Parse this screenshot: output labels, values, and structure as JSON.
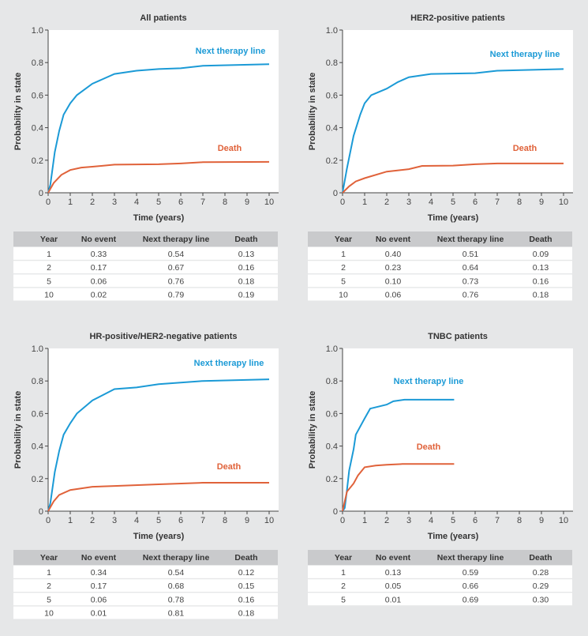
{
  "colors": {
    "next_therapy_line": "#1b9ad6",
    "death": "#e0623a",
    "background": "#e6e7e8",
    "table_header": "#c9cacc"
  },
  "chart_data": [
    {
      "type": "line",
      "title": "All patients",
      "xlabel": "Time (years)",
      "ylabel": "Probability in state",
      "xlim": [
        0,
        10
      ],
      "ylim": [
        0,
        1.0
      ],
      "xticks": [
        "0",
        "1",
        "2",
        "3",
        "4",
        "5",
        "6",
        "7",
        "8",
        "9",
        "10"
      ],
      "yticks": [
        "0",
        "0.2",
        "0.4",
        "0.6",
        "0.8",
        "1.0"
      ],
      "grid": false,
      "series": [
        {
          "name": "Next therapy line",
          "x": [
            0,
            0.1,
            0.3,
            0.5,
            0.7,
            1,
            1.3,
            2,
            3,
            4,
            5,
            6,
            7,
            10
          ],
          "y": [
            0,
            0.05,
            0.25,
            0.38,
            0.48,
            0.55,
            0.6,
            0.67,
            0.73,
            0.75,
            0.76,
            0.765,
            0.78,
            0.79
          ]
        },
        {
          "name": "Death",
          "x": [
            0,
            0.25,
            0.6,
            1,
            1.5,
            2,
            3,
            5,
            6,
            7,
            10
          ],
          "y": [
            0,
            0.06,
            0.11,
            0.14,
            0.155,
            0.16,
            0.173,
            0.175,
            0.18,
            0.188,
            0.19
          ]
        }
      ],
      "table": {
        "columns": [
          "Year",
          "No event",
          "Next therapy line",
          "Death"
        ],
        "rows": [
          [
            "1",
            "0.33",
            "0.54",
            "0.13"
          ],
          [
            "2",
            "0.17",
            "0.67",
            "0.16"
          ],
          [
            "5",
            "0.06",
            "0.76",
            "0.18"
          ],
          [
            "10",
            "0.02",
            "0.79",
            "0.19"
          ]
        ]
      }
    },
    {
      "type": "line",
      "title": "HER2-positive patients",
      "xlabel": "Time (years)",
      "ylabel": "Probability in state",
      "xlim": [
        0,
        10
      ],
      "ylim": [
        0,
        1.0
      ],
      "xticks": [
        "0",
        "1",
        "2",
        "3",
        "4",
        "5",
        "6",
        "7",
        "8",
        "9",
        "10"
      ],
      "yticks": [
        "0",
        "0.2",
        "0.4",
        "0.6",
        "0.8",
        "1.0"
      ],
      "grid": false,
      "series": [
        {
          "name": "Next therapy line",
          "x": [
            0,
            0.2,
            0.5,
            0.8,
            1,
            1.3,
            2,
            2.5,
            3,
            4,
            6,
            7,
            10
          ],
          "y": [
            0,
            0.15,
            0.35,
            0.48,
            0.55,
            0.6,
            0.64,
            0.68,
            0.71,
            0.73,
            0.735,
            0.75,
            0.76
          ]
        },
        {
          "name": "Death",
          "x": [
            0,
            0.3,
            0.6,
            1,
            2,
            3,
            3.6,
            5,
            6,
            7,
            10
          ],
          "y": [
            0,
            0.04,
            0.07,
            0.09,
            0.13,
            0.145,
            0.165,
            0.167,
            0.175,
            0.18,
            0.18
          ]
        }
      ],
      "table": {
        "columns": [
          "Year",
          "No event",
          "Next therapy line",
          "Death"
        ],
        "rows": [
          [
            "1",
            "0.40",
            "0.51",
            "0.09"
          ],
          [
            "2",
            "0.23",
            "0.64",
            "0.13"
          ],
          [
            "5",
            "0.10",
            "0.73",
            "0.16"
          ],
          [
            "10",
            "0.06",
            "0.76",
            "0.18"
          ]
        ]
      }
    },
    {
      "type": "line",
      "title": "HR-positive/HER2-negative patients",
      "xlabel": "Time (years)",
      "ylabel": "Probability in state",
      "xlim": [
        0,
        10
      ],
      "ylim": [
        0,
        1.0
      ],
      "xticks": [
        "0",
        "1",
        "2",
        "3",
        "4",
        "5",
        "6",
        "7",
        "8",
        "9",
        "10"
      ],
      "yticks": [
        "0",
        "0.2",
        "0.4",
        "0.6",
        "0.8",
        "1.0"
      ],
      "grid": false,
      "series": [
        {
          "name": "Next therapy line",
          "x": [
            0,
            0.1,
            0.3,
            0.5,
            0.7,
            1,
            1.3,
            2,
            3,
            4,
            5,
            7,
            10
          ],
          "y": [
            0,
            0.05,
            0.24,
            0.37,
            0.47,
            0.54,
            0.6,
            0.68,
            0.75,
            0.76,
            0.78,
            0.8,
            0.81
          ]
        },
        {
          "name": "Death",
          "x": [
            0,
            0.25,
            0.5,
            1,
            2,
            3,
            5,
            7,
            10
          ],
          "y": [
            0,
            0.06,
            0.1,
            0.13,
            0.15,
            0.155,
            0.165,
            0.175,
            0.175
          ]
        }
      ],
      "table": {
        "columns": [
          "Year",
          "No event",
          "Next therapy line",
          "Death"
        ],
        "rows": [
          [
            "1",
            "0.34",
            "0.54",
            "0.12"
          ],
          [
            "2",
            "0.17",
            "0.68",
            "0.15"
          ],
          [
            "5",
            "0.06",
            "0.78",
            "0.16"
          ],
          [
            "10",
            "0.01",
            "0.81",
            "0.18"
          ]
        ]
      }
    },
    {
      "type": "line",
      "title": "TNBC patients",
      "xlabel": "Time (years)",
      "ylabel": "Probability in state",
      "xlim": [
        0,
        10
      ],
      "ylim": [
        0,
        1.0
      ],
      "xticks": [
        "0",
        "1",
        "2",
        "3",
        "4",
        "5",
        "6",
        "7",
        "8",
        "9",
        "10"
      ],
      "yticks": [
        "0",
        "0.2",
        "0.4",
        "0.6",
        "0.8",
        "1.0"
      ],
      "grid": false,
      "series": [
        {
          "name": "Next therapy line",
          "x": [
            0,
            0.1,
            0.2,
            0.3,
            0.5,
            0.6,
            1,
            1.25,
            2,
            2.3,
            2.8,
            5.05
          ],
          "y": [
            0,
            0.02,
            0.13,
            0.25,
            0.38,
            0.47,
            0.57,
            0.63,
            0.655,
            0.675,
            0.685,
            0.685
          ]
        },
        {
          "name": "Death",
          "x": [
            0,
            0.2,
            0.5,
            0.7,
            1,
            1.5,
            2,
            2.7,
            5.05
          ],
          "y": [
            0,
            0.12,
            0.17,
            0.22,
            0.27,
            0.28,
            0.285,
            0.29,
            0.29
          ]
        }
      ],
      "table": {
        "columns": [
          "Year",
          "No event",
          "Next therapy line",
          "Death"
        ],
        "rows": [
          [
            "1",
            "0.13",
            "0.59",
            "0.28"
          ],
          [
            "2",
            "0.05",
            "0.66",
            "0.29"
          ],
          [
            "5",
            "0.01",
            "0.69",
            "0.30"
          ]
        ]
      }
    }
  ]
}
